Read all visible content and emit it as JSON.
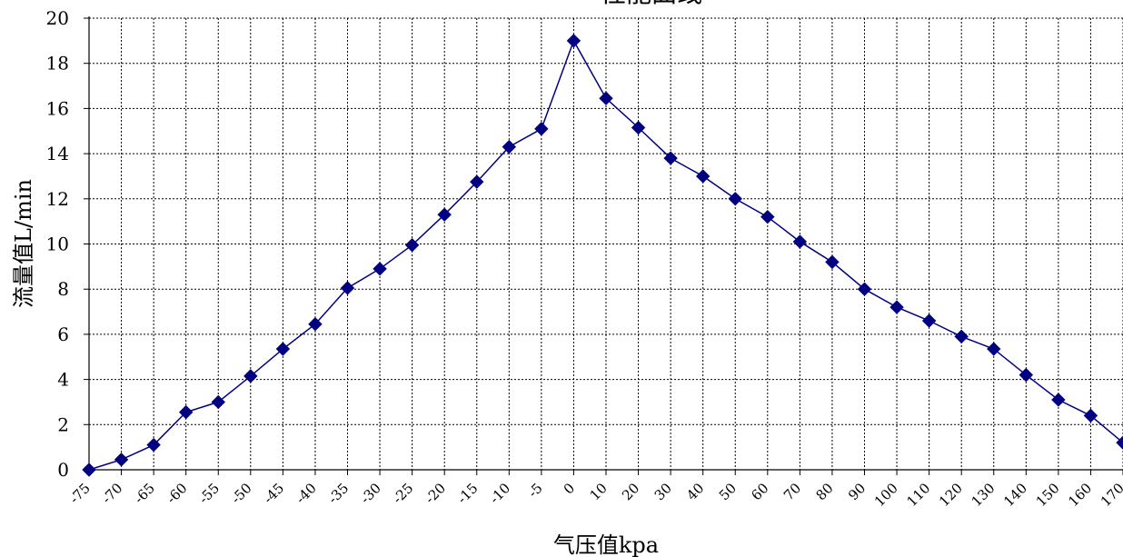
{
  "chart_data": {
    "type": "line",
    "title": "性能曲线",
    "xlabel": "气压值kpa",
    "ylabel": "流量值L/min",
    "ylim": [
      0,
      20
    ],
    "yticks": [
      0,
      2,
      4,
      6,
      8,
      10,
      12,
      14,
      16,
      18,
      20
    ],
    "categories": [
      "-75",
      "-70",
      "-65",
      "-60",
      "-55",
      "-50",
      "-45",
      "-40",
      "-35",
      "-30",
      "-25",
      "-20",
      "-15",
      "-10",
      "-5",
      "0",
      "10",
      "20",
      "30",
      "40",
      "50",
      "60",
      "70",
      "80",
      "90",
      "100",
      "110",
      "120",
      "130",
      "140",
      "150",
      "160",
      "170"
    ],
    "grid": true,
    "marker": "diamond",
    "series": [
      {
        "color": "#000080",
        "values": [
          0,
          0.45,
          1.1,
          2.55,
          3.0,
          4.15,
          5.35,
          6.45,
          8.05,
          8.9,
          9.95,
          11.3,
          12.75,
          14.3,
          15.1,
          19.0,
          16.45,
          15.15,
          13.8,
          13.0,
          12.0,
          11.2,
          10.1,
          9.2,
          8.0,
          7.2,
          6.6,
          5.9,
          5.35,
          4.2,
          3.1,
          2.4,
          1.2
        ]
      }
    ]
  }
}
